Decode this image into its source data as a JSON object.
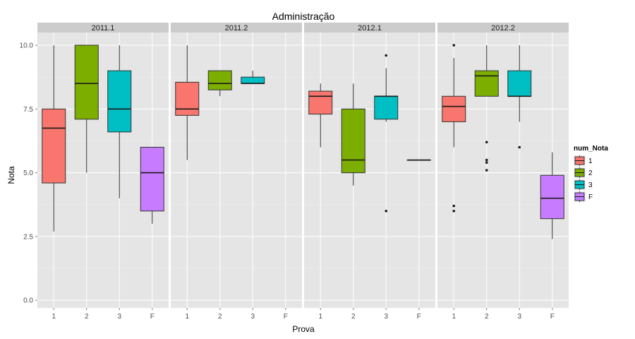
{
  "chart_data": {
    "type": "boxplot",
    "title": "Administração",
    "xlabel": "Prova",
    "ylabel": "Nota",
    "ylim": [
      -0.3,
      10.5
    ],
    "yticks": [
      "0.0",
      "2.5",
      "5.0",
      "7.5",
      "10.0"
    ],
    "ytick_values": [
      0,
      2.5,
      5,
      7.5,
      10
    ],
    "categories": [
      "1",
      "2",
      "3",
      "F"
    ],
    "grid": true,
    "legend": {
      "title": "num_Nota",
      "position": "right",
      "entries": [
        "1",
        "2",
        "3",
        "F"
      ]
    },
    "colors": {
      "1": "#F8766D",
      "2": "#7CAE00",
      "3": "#00BFC4",
      "F": "#C77CFF"
    },
    "panel_bg": "#E5E5E5",
    "strip_bg": "#CCCCCC",
    "panels": [
      {
        "label": "2011.1",
        "boxes": [
          {
            "category": "1",
            "low": 2.7,
            "q1": 4.6,
            "median": 6.75,
            "q3": 7.5,
            "high": 10.0,
            "outliers": []
          },
          {
            "category": "2",
            "low": 5.0,
            "q1": 7.1,
            "median": 8.5,
            "q3": 10.0,
            "high": 10.0,
            "outliers": []
          },
          {
            "category": "3",
            "low": 4.0,
            "q1": 6.6,
            "median": 7.5,
            "q3": 9.0,
            "high": 10.0,
            "outliers": []
          },
          {
            "category": "F",
            "low": 3.0,
            "q1": 3.5,
            "median": 5.0,
            "q3": 6.0,
            "high": 6.0,
            "outliers": []
          }
        ]
      },
      {
        "label": "2011.2",
        "boxes": [
          {
            "category": "1",
            "low": 5.5,
            "q1": 7.25,
            "median": 7.5,
            "q3": 8.55,
            "high": 10.0,
            "outliers": []
          },
          {
            "category": "2",
            "low": 8.0,
            "q1": 8.25,
            "median": 8.5,
            "q3": 9.0,
            "high": 9.0,
            "outliers": []
          },
          {
            "category": "3",
            "low": 8.5,
            "q1": 8.5,
            "median": 8.5,
            "q3": 8.75,
            "high": 9.0,
            "outliers": []
          }
        ]
      },
      {
        "label": "2012.1",
        "boxes": [
          {
            "category": "1",
            "low": 6.0,
            "q1": 7.3,
            "median": 8.0,
            "q3": 8.2,
            "high": 8.5,
            "outliers": []
          },
          {
            "category": "2",
            "low": 4.5,
            "q1": 5.0,
            "median": 5.5,
            "q3": 7.5,
            "high": 8.5,
            "outliers": []
          },
          {
            "category": "3",
            "low": 7.0,
            "q1": 7.1,
            "median": 8.0,
            "q3": 8.0,
            "high": 9.1,
            "outliers": [
              9.6,
              3.5
            ]
          },
          {
            "category": "F",
            "low": 5.5,
            "q1": 5.5,
            "median": 5.5,
            "q3": 5.5,
            "high": 5.5,
            "outliers": []
          }
        ]
      },
      {
        "label": "2012.2",
        "boxes": [
          {
            "category": "1",
            "low": 6.0,
            "q1": 7.0,
            "median": 7.6,
            "q3": 8.0,
            "high": 9.5,
            "outliers": [
              10.0,
              3.7,
              3.5
            ]
          },
          {
            "category": "2",
            "low": 8.0,
            "q1": 8.0,
            "median": 8.8,
            "q3": 9.0,
            "high": 10.0,
            "outliers": [
              6.2,
              5.5,
              5.4,
              5.1
            ]
          },
          {
            "category": "3",
            "low": 7.0,
            "q1": 8.0,
            "median": 8.0,
            "q3": 9.0,
            "high": 10.0,
            "outliers": [
              6.0
            ]
          },
          {
            "category": "F",
            "low": 2.4,
            "q1": 3.2,
            "median": 4.0,
            "q3": 4.9,
            "high": 5.8,
            "outliers": []
          }
        ]
      }
    ]
  }
}
